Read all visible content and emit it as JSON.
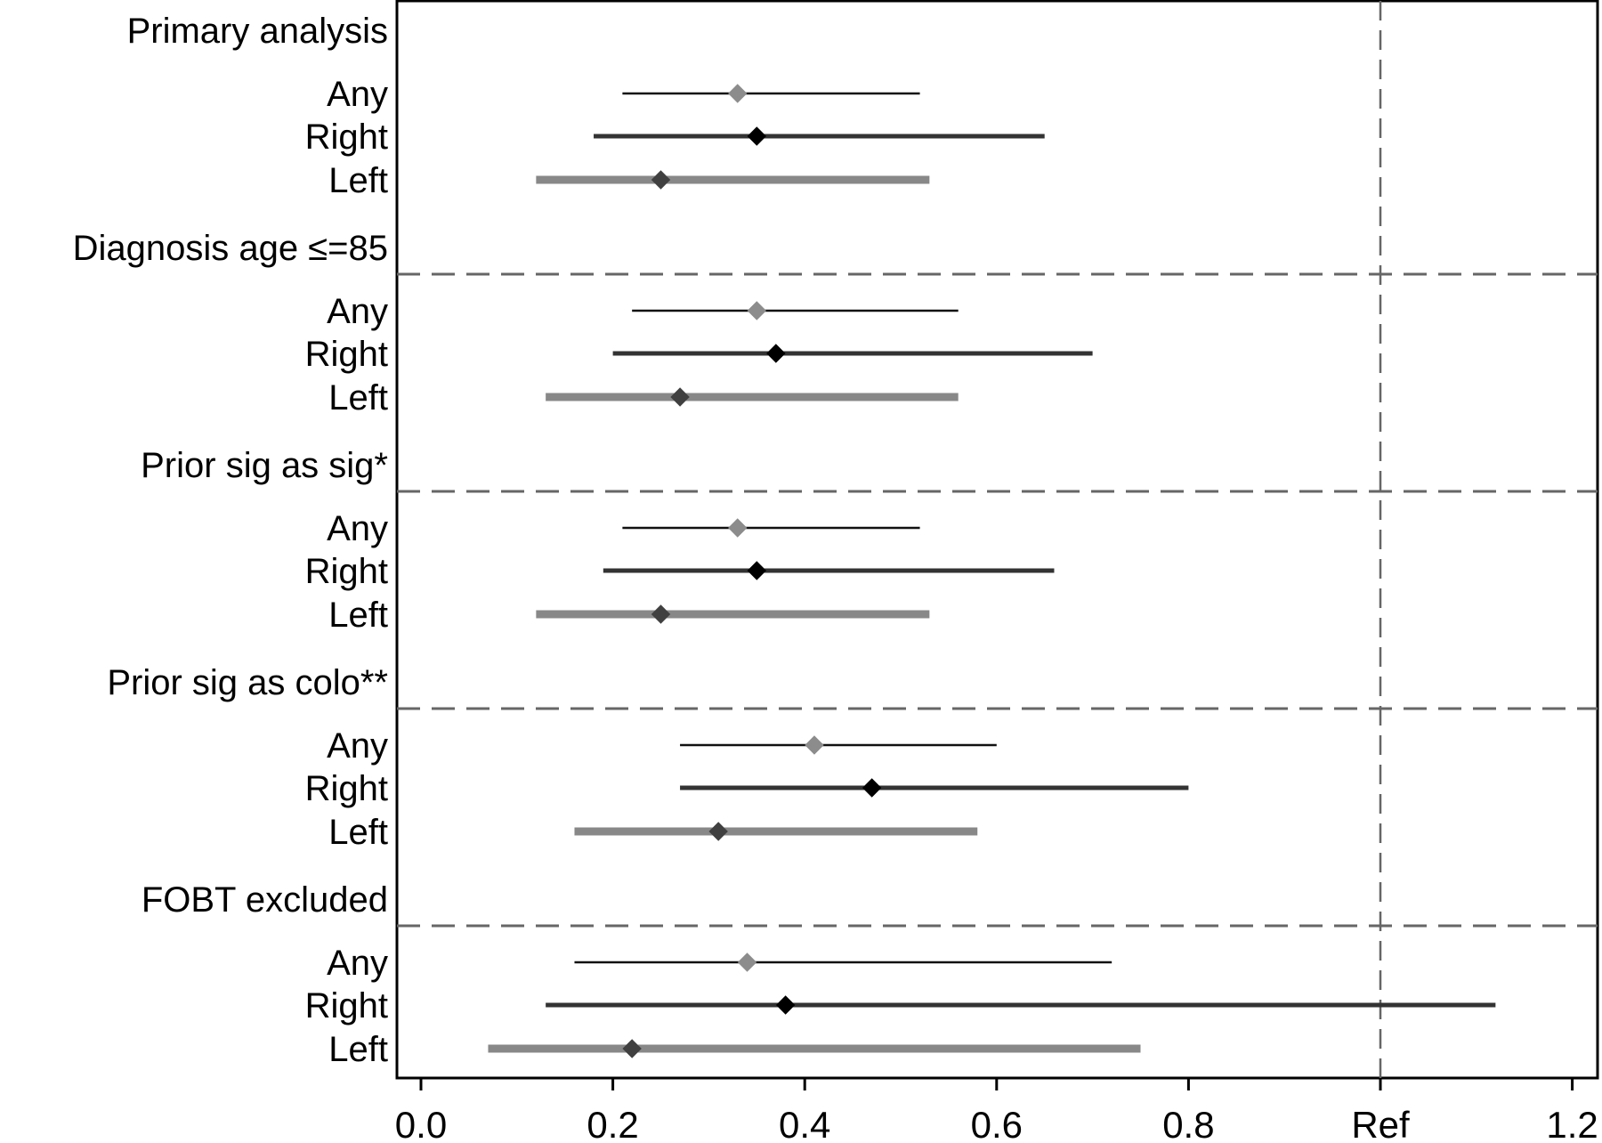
{
  "chart_data": {
    "type": "forest",
    "xlim": [
      -0.03,
      1.2
    ],
    "x_ticks": [
      {
        "value": 0.0,
        "label": "0.0"
      },
      {
        "value": 0.2,
        "label": "0.2"
      },
      {
        "value": 0.4,
        "label": "0.4"
      },
      {
        "value": 0.6,
        "label": "0.6"
      },
      {
        "value": 0.8,
        "label": "0.8"
      },
      {
        "value": 1.0,
        "label": "Ref"
      },
      {
        "value": 1.2,
        "label": "1.2"
      }
    ],
    "reference_value": 1.0,
    "row_styles": {
      "Any": {
        "line_color": "#111111",
        "marker_color": "#8c8c8c",
        "line_weight": "thin"
      },
      "Right": {
        "line_color": "#333333",
        "marker_color": "#000000",
        "line_weight": "medium"
      },
      "Left": {
        "line_color": "#888888",
        "marker_color": "#404040",
        "line_weight": "thick"
      }
    },
    "groups": [
      {
        "title": "Primary analysis",
        "rows": [
          {
            "label": "Any",
            "estimate": 0.33,
            "lower": 0.21,
            "upper": 0.52
          },
          {
            "label": "Right",
            "estimate": 0.35,
            "lower": 0.18,
            "upper": 0.65
          },
          {
            "label": "Left",
            "estimate": 0.25,
            "lower": 0.12,
            "upper": 0.53
          }
        ]
      },
      {
        "title": "Diagnosis age ≤=85",
        "rows": [
          {
            "label": "Any",
            "estimate": 0.35,
            "lower": 0.22,
            "upper": 0.56
          },
          {
            "label": "Right",
            "estimate": 0.37,
            "lower": 0.2,
            "upper": 0.7
          },
          {
            "label": "Left",
            "estimate": 0.27,
            "lower": 0.13,
            "upper": 0.56
          }
        ]
      },
      {
        "title": "Prior sig as sig*",
        "rows": [
          {
            "label": "Any",
            "estimate": 0.33,
            "lower": 0.21,
            "upper": 0.52
          },
          {
            "label": "Right",
            "estimate": 0.35,
            "lower": 0.19,
            "upper": 0.66
          },
          {
            "label": "Left",
            "estimate": 0.25,
            "lower": 0.12,
            "upper": 0.53
          }
        ]
      },
      {
        "title": "Prior sig as colo**",
        "rows": [
          {
            "label": "Any",
            "estimate": 0.41,
            "lower": 0.27,
            "upper": 0.6
          },
          {
            "label": "Right",
            "estimate": 0.47,
            "lower": 0.27,
            "upper": 0.8
          },
          {
            "label": "Left",
            "estimate": 0.31,
            "lower": 0.16,
            "upper": 0.58
          }
        ]
      },
      {
        "title": "FOBT excluded",
        "rows": [
          {
            "label": "Any",
            "estimate": 0.34,
            "lower": 0.16,
            "upper": 0.72
          },
          {
            "label": "Right",
            "estimate": 0.38,
            "lower": 0.13,
            "upper": 1.12
          },
          {
            "label": "Left",
            "estimate": 0.22,
            "lower": 0.07,
            "upper": 0.75
          }
        ]
      }
    ]
  }
}
